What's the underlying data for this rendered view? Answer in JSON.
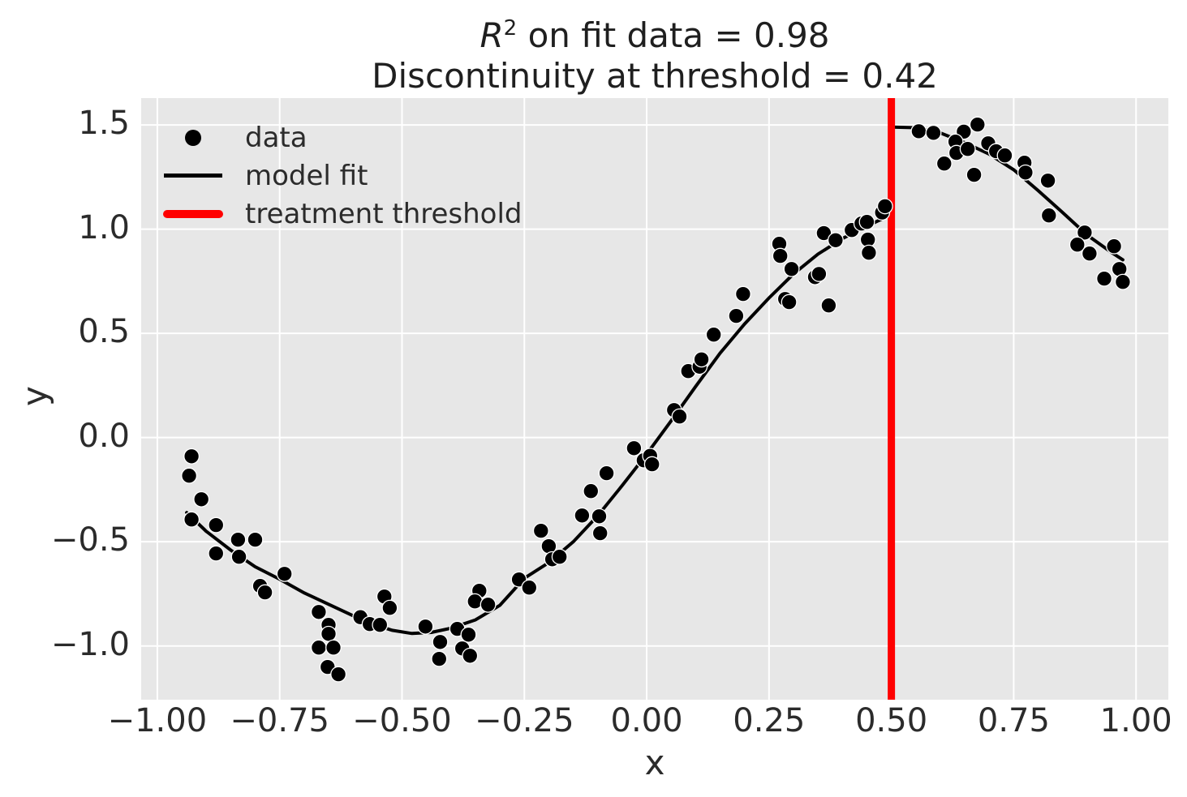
{
  "title": {
    "r_symbol": "R",
    "exponent": "2",
    "line1_rest": " on fit data = 0.98",
    "line2": "Discontinuity at threshold = 0.42"
  },
  "axes": {
    "xlabel": "x",
    "ylabel": "y"
  },
  "legend": {
    "items": [
      {
        "label": "data",
        "marker": "dot",
        "color": "#000000"
      },
      {
        "label": "model fit",
        "marker": "line",
        "color": "#000000"
      },
      {
        "label": "treatment threshold",
        "marker": "thick-line",
        "color": "#ff0000"
      }
    ]
  },
  "colors": {
    "figure_bg": "#ffffff",
    "plot_bg": "#e7e7e7",
    "grid": "#ffffff",
    "data": "#000000",
    "fit": "#000000",
    "threshold": "#ff0000",
    "text": "#2b2b2b"
  },
  "chart_data": {
    "type": "scatter",
    "title": "R^2 on fit data = 0.98 / Discontinuity at threshold = 0.42",
    "r_squared": 0.98,
    "discontinuity": 0.42,
    "threshold_x": 0.5,
    "xlabel": "x",
    "ylabel": "y",
    "grid": true,
    "legend_position": "upper left",
    "xlim": [
      -1.033,
      1.066
    ],
    "ylim": [
      -1.258,
      1.629
    ],
    "x_ticks": [
      {
        "v": -1.0,
        "label": "−1.00"
      },
      {
        "v": -0.75,
        "label": "−0.75"
      },
      {
        "v": -0.5,
        "label": "−0.50"
      },
      {
        "v": -0.25,
        "label": "−0.25"
      },
      {
        "v": 0.0,
        "label": "0.00"
      },
      {
        "v": 0.25,
        "label": "0.25"
      },
      {
        "v": 0.5,
        "label": "0.50"
      },
      {
        "v": 0.75,
        "label": "0.75"
      },
      {
        "v": 1.0,
        "label": "1.00"
      }
    ],
    "y_ticks": [
      {
        "v": -1.0,
        "label": "−1.0"
      },
      {
        "v": -0.5,
        "label": "−0.5"
      },
      {
        "v": 0.0,
        "label": "0.0"
      },
      {
        "v": 0.5,
        "label": "0.5"
      },
      {
        "v": 1.0,
        "label": "1.0"
      },
      {
        "v": 1.5,
        "label": "1.5"
      }
    ],
    "scatter": [
      [
        -0.93,
        -0.09
      ],
      [
        -0.935,
        -0.183
      ],
      [
        -0.91,
        -0.296
      ],
      [
        -0.93,
        -0.393
      ],
      [
        -0.88,
        -0.42
      ],
      [
        -0.835,
        -0.49
      ],
      [
        -0.8,
        -0.49
      ],
      [
        -0.88,
        -0.556
      ],
      [
        -0.833,
        -0.572
      ],
      [
        -0.74,
        -0.654
      ],
      [
        -0.79,
        -0.712
      ],
      [
        -0.78,
        -0.743
      ],
      [
        -0.67,
        -0.837
      ],
      [
        -0.585,
        -0.862
      ],
      [
        -0.65,
        -0.899
      ],
      [
        -0.65,
        -0.942
      ],
      [
        -0.67,
        -1.008
      ],
      [
        -0.64,
        -1.008
      ],
      [
        -0.652,
        -1.101
      ],
      [
        -0.63,
        -1.136
      ],
      [
        -0.536,
        -0.763
      ],
      [
        -0.525,
        -0.817
      ],
      [
        -0.566,
        -0.895
      ],
      [
        -0.545,
        -0.899
      ],
      [
        -0.452,
        -0.907
      ],
      [
        -0.387,
        -0.918
      ],
      [
        -0.364,
        -0.946
      ],
      [
        -0.422,
        -0.981
      ],
      [
        -0.377,
        -1.012
      ],
      [
        -0.361,
        -1.047
      ],
      [
        -0.424,
        -1.062
      ],
      [
        -0.342,
        -0.735
      ],
      [
        -0.351,
        -0.786
      ],
      [
        -0.324,
        -0.802
      ],
      [
        -0.261,
        -0.681
      ],
      [
        -0.24,
        -0.72
      ],
      [
        -0.216,
        -0.447
      ],
      [
        -0.2,
        -0.521
      ],
      [
        -0.193,
        -0.584
      ],
      [
        -0.178,
        -0.572
      ],
      [
        -0.132,
        -0.374
      ],
      [
        -0.114,
        -0.257
      ],
      [
        -0.097,
        -0.378
      ],
      [
        -0.095,
        -0.459
      ],
      [
        -0.082,
        -0.171
      ],
      [
        -0.026,
        -0.051
      ],
      [
        -0.006,
        -0.109
      ],
      [
        0.007,
        -0.088
      ],
      [
        0.011,
        -0.128
      ],
      [
        0.056,
        0.132
      ],
      [
        0.067,
        0.101
      ],
      [
        0.085,
        0.319
      ],
      [
        0.108,
        0.34
      ],
      [
        0.112,
        0.375
      ],
      [
        0.137,
        0.494
      ],
      [
        0.183,
        0.584
      ],
      [
        0.197,
        0.689
      ],
      [
        0.271,
        0.93
      ],
      [
        0.273,
        0.872
      ],
      [
        0.296,
        0.809
      ],
      [
        0.283,
        0.665
      ],
      [
        0.291,
        0.65
      ],
      [
        0.344,
        0.77
      ],
      [
        0.352,
        0.785
      ],
      [
        0.362,
        0.981
      ],
      [
        0.372,
        0.634
      ],
      [
        0.386,
        0.947
      ],
      [
        0.419,
        0.996
      ],
      [
        0.439,
        1.027
      ],
      [
        0.45,
        1.035
      ],
      [
        0.452,
        0.95
      ],
      [
        0.454,
        0.887
      ],
      [
        0.481,
        1.08
      ],
      [
        0.487,
        1.11
      ],
      [
        0.556,
        1.47
      ],
      [
        0.586,
        1.462
      ],
      [
        0.648,
        1.468
      ],
      [
        0.676,
        1.502
      ],
      [
        0.631,
        1.42
      ],
      [
        0.633,
        1.366
      ],
      [
        0.656,
        1.385
      ],
      [
        0.608,
        1.315
      ],
      [
        0.698,
        1.412
      ],
      [
        0.714,
        1.374
      ],
      [
        0.732,
        1.354
      ],
      [
        0.669,
        1.261
      ],
      [
        0.772,
        1.319
      ],
      [
        0.774,
        1.272
      ],
      [
        0.82,
        1.233
      ],
      [
        0.822,
        1.066
      ],
      [
        0.895,
        0.984
      ],
      [
        0.88,
        0.926
      ],
      [
        0.905,
        0.883
      ],
      [
        0.955,
        0.918
      ],
      [
        0.966,
        0.809
      ],
      [
        0.935,
        0.763
      ],
      [
        0.973,
        0.747
      ]
    ],
    "fit_left": [
      [
        -0.94,
        -0.36
      ],
      [
        -0.9,
        -0.45
      ],
      [
        -0.85,
        -0.54
      ],
      [
        -0.8,
        -0.62
      ],
      [
        -0.75,
        -0.68
      ],
      [
        -0.7,
        -0.745
      ],
      [
        -0.65,
        -0.8
      ],
      [
        -0.6,
        -0.855
      ],
      [
        -0.56,
        -0.895
      ],
      [
        -0.52,
        -0.925
      ],
      [
        -0.48,
        -0.94
      ],
      [
        -0.44,
        -0.935
      ],
      [
        -0.4,
        -0.915
      ],
      [
        -0.35,
        -0.875
      ],
      [
        -0.3,
        -0.805
      ],
      [
        -0.25,
        -0.675
      ],
      [
        -0.2,
        -0.6
      ],
      [
        -0.15,
        -0.5
      ],
      [
        -0.1,
        -0.375
      ],
      [
        -0.05,
        -0.23
      ],
      [
        0.0,
        -0.08
      ],
      [
        0.05,
        0.08
      ],
      [
        0.1,
        0.245
      ],
      [
        0.15,
        0.405
      ],
      [
        0.2,
        0.545
      ],
      [
        0.25,
        0.67
      ],
      [
        0.3,
        0.785
      ],
      [
        0.35,
        0.88
      ],
      [
        0.4,
        0.955
      ],
      [
        0.45,
        1.015
      ],
      [
        0.48,
        1.048
      ],
      [
        0.5,
        1.07
      ]
    ],
    "fit_right": [
      [
        0.502,
        1.49
      ],
      [
        0.55,
        1.487
      ],
      [
        0.6,
        1.462
      ],
      [
        0.65,
        1.415
      ],
      [
        0.7,
        1.36
      ],
      [
        0.75,
        1.285
      ],
      [
        0.8,
        1.185
      ],
      [
        0.85,
        1.08
      ],
      [
        0.9,
        0.972
      ],
      [
        0.95,
        0.888
      ],
      [
        0.973,
        0.853
      ]
    ]
  }
}
